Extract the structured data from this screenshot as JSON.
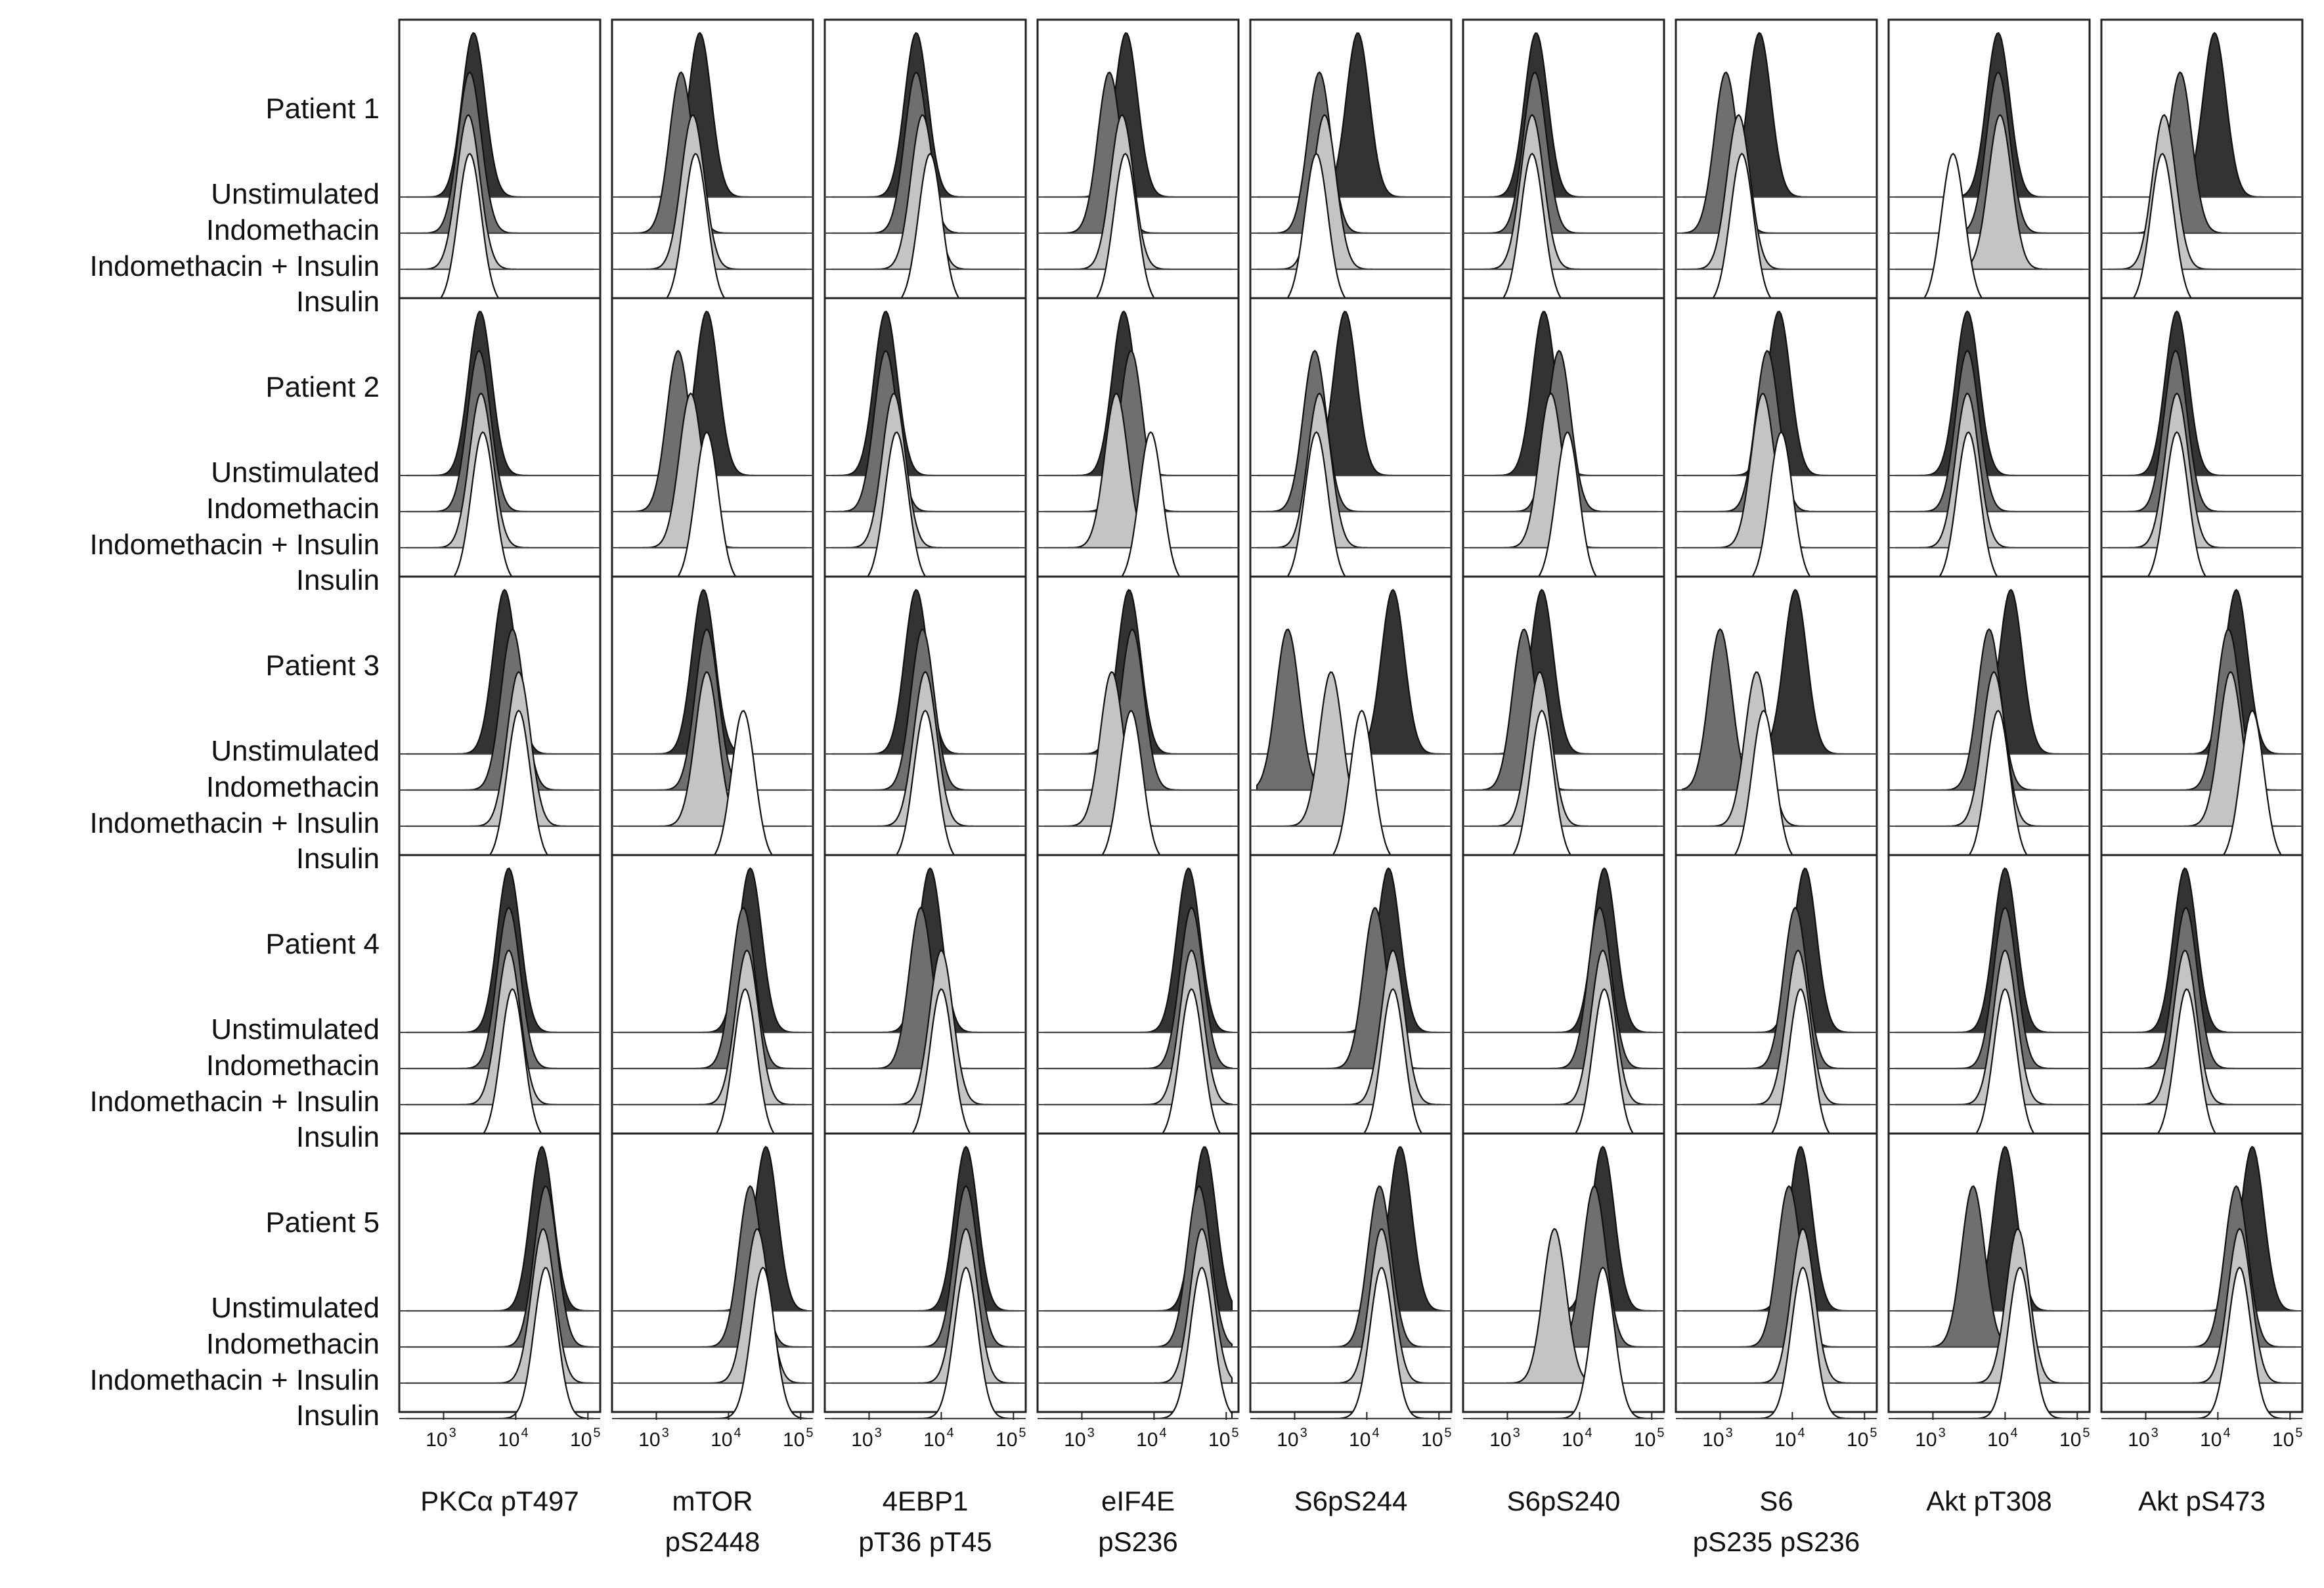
{
  "chart_data": {
    "type": "histogram-overlay-grid",
    "description_scale": "log10 fluorescence intensity",
    "x_axis": {
      "scale": "log",
      "range": [
        300,
        120000
      ],
      "ticks": [
        {
          "base": "10",
          "exp": "3",
          "value": 1000
        },
        {
          "base": "10",
          "exp": "4",
          "value": 10000
        },
        {
          "base": "10",
          "exp": "5",
          "value": 100000
        }
      ]
    },
    "conditions": [
      {
        "name": "Unstimulated",
        "color": "#333333"
      },
      {
        "name": "Indomethacin",
        "color": "#6f6f6f"
      },
      {
        "name": "Indomethacin + Insulin",
        "color": "#c4c4c4"
      },
      {
        "name": "Insulin",
        "color": "#ffffff"
      }
    ],
    "markers": [
      {
        "line1": "PKCα pT497",
        "line2": ""
      },
      {
        "line1": "mTOR",
        "line2": "pS2448"
      },
      {
        "line1": "4EBP1",
        "line2": "pT36 pT45"
      },
      {
        "line1": "eIF4E",
        "line2": "pS236"
      },
      {
        "line1": "S6pS244",
        "line2": ""
      },
      {
        "line1": "S6pS240",
        "line2": ""
      },
      {
        "line1": "S6",
        "line2": "pS235 pS236"
      },
      {
        "line1": "Akt pT308",
        "line2": ""
      },
      {
        "line1": "Akt pS473",
        "line2": ""
      }
    ],
    "patients": [
      {
        "name": "Patient 1",
        "peaks": [
          [
            [
              2600,
              2300,
              2200,
              2300
            ]
          ],
          [
            [
              4000,
              2200,
              3200,
              3500
            ]
          ],
          [
            [
              4500,
              4500,
              5500,
              7000
            ]
          ],
          [
            [
              4100,
              2400,
              3600,
              4000
            ]
          ],
          [
            [
              7500,
              2200,
              2600,
              2000
            ]
          ],
          [
            [
              2500,
              2400,
              2200,
              2200
            ]
          ],
          [
            [
              3500,
              1200,
              1800,
              2000
            ]
          ],
          [
            [
              8000,
              8000,
              8500,
              1900
            ]
          ],
          [
            [
              9000,
              3000,
              1800,
              1700
            ]
          ]
        ]
      },
      {
        "name": "Patient 2",
        "peaks": [
          [
            [
              3200,
              3100,
              3300,
              3500
            ]
          ],
          [
            [
              5000,
              2000,
              3000,
              5000
            ]
          ],
          [
            [
              1700,
              1700,
              2200,
              2400
            ]
          ],
          [
            [
              3800,
              4800,
              3000,
              9000
            ]
          ],
          [
            [
              5000,
              1900,
              2200,
              2000
            ]
          ],
          [
            [
              3200,
              5200,
              4000,
              6800
            ]
          ],
          [
            [
              6500,
              4500,
              3900,
              7000
            ]
          ],
          [
            [
              3000,
              3000,
              3000,
              3100
            ]
          ],
          [
            [
              2700,
              2600,
              2700,
              2700
            ]
          ]
        ]
      },
      {
        "name": "Patient 3",
        "peaks": [
          [
            [
              7000,
              9000,
              11000,
              11000
            ]
          ],
          [
            [
              4500,
              5000,
              5000,
              16000
            ]
          ],
          [
            [
              4500,
              5500,
              6000,
              6000
            ]
          ],
          [
            [
              4500,
              5000,
              2600,
              4800
            ]
          ],
          [
            [
              23000,
              800,
              3200,
              8500
            ]
          ],
          [
            [
              3000,
              1700,
              2800,
              3000
            ]
          ],
          [
            [
              11000,
              1000,
              3200,
              4000
            ]
          ],
          [
            [
              12000,
              6000,
              7000,
              8000
            ]
          ],
          [
            [
              18000,
              14000,
              15000,
              30000
            ]
          ]
        ]
      },
      {
        "name": "Patient 4",
        "peaks": [
          [
            [
              8000,
              8000,
              8000,
              9000
            ]
          ],
          [
            [
              20000,
              16000,
              18000,
              17000
            ]
          ],
          [
            [
              7000,
              5200,
              10000,
              10000
            ]
          ],
          [
            [
              30000,
              33000,
              33000,
              33000
            ]
          ],
          [
            [
              20000,
              13000,
              23000,
              23000
            ]
          ],
          [
            [
              22000,
              19000,
              21000,
              22000
            ]
          ],
          [
            [
              15000,
              11000,
              12000,
              13000
            ]
          ],
          [
            [
              10000,
              10000,
              10000,
              10000
            ]
          ],
          [
            [
              3500,
              3600,
              3500,
              3700
            ]
          ]
        ]
      },
      {
        "name": "Patient 5",
        "peaks": [
          [
            [
              23000,
              26000,
              24000,
              26000
            ]
          ],
          [
            [
              33000,
              20000,
              25000,
              30000
            ]
          ],
          [
            [
              22000,
              22000,
              22000,
              22000
            ]
          ],
          [
            [
              50000,
              42000,
              46000,
              46000
            ]
          ],
          [
            [
              29000,
              15000,
              16000,
              16000
            ]
          ],
          [
            [
              21000,
              16000,
              4500,
              21000
            ]
          ],
          [
            [
              13000,
              9000,
              14000,
              14000
            ]
          ],
          [
            [
              10000,
              3600,
              15000,
              16000
            ]
          ],
          [
            [
              30000,
              18000,
              20000,
              20000
            ]
          ]
        ]
      }
    ]
  }
}
